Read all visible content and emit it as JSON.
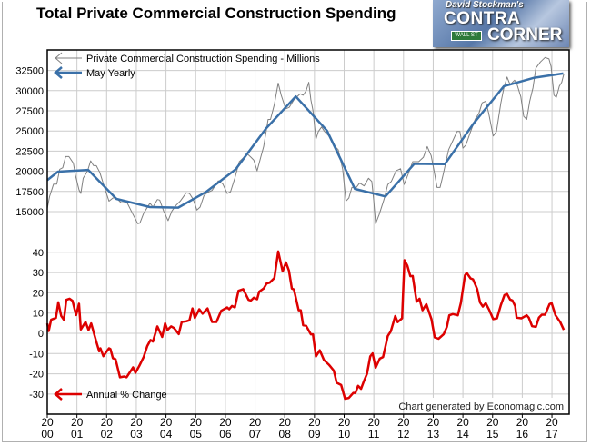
{
  "chart_data": [
    {
      "type": "line",
      "title": "Total Private Commercial Construction Spending",
      "ylim": [
        12500,
        35000
      ],
      "yticks": [
        15000,
        17500,
        20000,
        22500,
        25000,
        27500,
        30000,
        32500
      ],
      "grid": true,
      "legend_placement": "top-left",
      "series": [
        {
          "name": "Private Commercial Construction Spending  - Millions",
          "color": "#808080",
          "x": [
            2000,
            2000.08,
            2000.21,
            2000.32,
            2000.42,
            2000.52,
            2000.62,
            2000.73,
            2000.88,
            2000.95,
            2001.07,
            2001.13,
            2001.21,
            2001.36,
            2001.46,
            2001.56,
            2001.65,
            2001.77,
            2001.92,
            2002.08,
            2002.21,
            2002.33,
            2002.48,
            2002.69,
            2002.89,
            2003.05,
            2003.12,
            2003.25,
            2003.46,
            2003.56,
            2003.71,
            2003.79,
            2003.92,
            2004.07,
            2004.2,
            2004.33,
            2004.48,
            2004.68,
            2004.79,
            2004.92,
            2005.04,
            2005.15,
            2005.28,
            2005.4,
            2005.55,
            2005.76,
            2005.91,
            2006.06,
            2006.17,
            2006.32,
            2006.47,
            2006.61,
            2006.73,
            2006.86,
            2006.96,
            2007.07,
            2007.19,
            2007.29,
            2007.44,
            2007.52,
            2007.65,
            2007.78,
            2007.88,
            2008.03,
            2008.15,
            2008.31,
            2008.52,
            2008.62,
            2008.72,
            2008.81,
            2008.88,
            2008.95,
            2009.05,
            2009.13,
            2009.24,
            2009.34,
            2009.49,
            2009.65,
            2009.8,
            2009.95,
            2010.06,
            2010.16,
            2010.26,
            2010.41,
            2010.52,
            2010.67,
            2010.82,
            2010.93,
            2011,
            2011.06,
            2011.18,
            2011.34,
            2011.47,
            2011.59,
            2011.75,
            2011.9,
            2012.02,
            2012.16,
            2012.31,
            2012.51,
            2012.67,
            2012.8,
            2012.93,
            2013.03,
            2013.13,
            2013.23,
            2013.33,
            2013.52,
            2013.64,
            2013.8,
            2013.9,
            2014,
            2014.1,
            2014.26,
            2014.41,
            2014.54,
            2014.65,
            2014.77,
            2014.87,
            2015.02,
            2015.13,
            2015.28,
            2015.38,
            2015.49,
            2015.59,
            2015.74,
            2015.81,
            2015.95,
            2016.05,
            2016.15,
            2016.25,
            2016.36,
            2016.46,
            2016.61,
            2016.77,
            2016.9,
            2016.97,
            2017.07,
            2017.15,
            2017.25,
            2017.33,
            2017.4
          ],
          "values": [
            15380,
            16900,
            18400,
            18400,
            20250,
            20440,
            21820,
            21820,
            21000,
            19500,
            17700,
            17250,
            19130,
            20060,
            21300,
            20700,
            20700,
            19870,
            18070,
            16300,
            16690,
            16690,
            16120,
            16120,
            14630,
            13500,
            13580,
            14810,
            16050,
            15560,
            16500,
            16430,
            15080,
            13880,
            15080,
            15750,
            16310,
            17330,
            17250,
            16500,
            15190,
            15560,
            16990,
            17360,
            17620,
            18820,
            18450,
            17250,
            17440,
            19130,
            21190,
            21680,
            22200,
            21750,
            21370,
            20060,
            21750,
            23060,
            26430,
            26430,
            28300,
            30930,
            29430,
            27740,
            27930,
            28870,
            29610,
            29430,
            29990,
            31040,
            28870,
            27550,
            23990,
            24930,
            25490,
            24930,
            24370,
            23250,
            22680,
            20250,
            16310,
            16690,
            18000,
            18000,
            18560,
            18190,
            19130,
            18750,
            16310,
            13500,
            14630,
            16500,
            18370,
            18750,
            20060,
            20320,
            18370,
            19690,
            21190,
            21190,
            21750,
            23060,
            21940,
            20060,
            18000,
            18000,
            19500,
            22680,
            23620,
            24930,
            24930,
            22870,
            23250,
            24930,
            26430,
            27180,
            28490,
            28680,
            27180,
            24370,
            24930,
            28490,
            30360,
            31680,
            30740,
            31300,
            30930,
            29240,
            26800,
            26430,
            28680,
            30360,
            32800,
            33550,
            34110,
            33930,
            32990,
            29430,
            29170,
            30550,
            31040,
            32050
          ]
        },
        {
          "name": "May Yearly",
          "color": "#3a70a8",
          "x": [
            2000,
            2000.36,
            2001.38,
            2002.33,
            2003.46,
            2004.41,
            2005.35,
            2006.35,
            2007.37,
            2008.37,
            2009.42,
            2010.36,
            2011.39,
            2012.36,
            2013.39,
            2014.36,
            2015.38,
            2016.41,
            2017.38
          ],
          "values": [
            18900,
            19950,
            20170,
            16580,
            15560,
            15490,
            17440,
            20250,
            25300,
            29280,
            25040,
            17810,
            16880,
            20920,
            20880,
            25940,
            30550,
            31600,
            32130
          ]
        }
      ]
    },
    {
      "type": "line",
      "ylim": [
        -40,
        40
      ],
      "yticks": [
        -30,
        -20,
        -10,
        0,
        10,
        20,
        30,
        40
      ],
      "grid": true,
      "legend_placement": "bottom-left",
      "series": [
        {
          "name": "Annual % Change",
          "color": "#dd0000",
          "x": [
            2000,
            2000.05,
            2000.13,
            2000.29,
            2000.37,
            2000.47,
            2000.56,
            2000.64,
            2000.75,
            2000.85,
            2000.97,
            2001.07,
            2001.13,
            2001.29,
            2001.39,
            2001.48,
            2001.65,
            2001.75,
            2001.79,
            2001.89,
            2002.08,
            2002.13,
            2002.21,
            2002.3,
            2002.45,
            2002.59,
            2002.67,
            2002.89,
            2002.97,
            2003.1,
            2003.25,
            2003.37,
            2003.48,
            2003.56,
            2003.71,
            2003.87,
            2003.97,
            2004.05,
            2004.17,
            2004.27,
            2004.43,
            2004.53,
            2004.68,
            2004.79,
            2004.89,
            2004.97,
            2005.12,
            2005.23,
            2005.4,
            2005.55,
            2005.7,
            2005.86,
            2006.06,
            2006.13,
            2006.22,
            2006.32,
            2006.44,
            2006.6,
            2006.78,
            2006.86,
            2006.96,
            2007.07,
            2007.14,
            2007.29,
            2007.39,
            2007.49,
            2007.65,
            2007.78,
            2007.93,
            2008.04,
            2008.14,
            2008.24,
            2008.31,
            2008.47,
            2008.54,
            2008.62,
            2008.72,
            2008.88,
            2008.95,
            2009.05,
            2009.18,
            2009.32,
            2009.49,
            2009.65,
            2009.75,
            2009.9,
            2010.03,
            2010.16,
            2010.31,
            2010.38,
            2010.47,
            2010.57,
            2010.67,
            2010.77,
            2010.88,
            2010.96,
            2011.06,
            2011.2,
            2011.31,
            2011.47,
            2011.57,
            2011.72,
            2011.8,
            2011.95,
            2012.03,
            2012.13,
            2012.23,
            2012.31,
            2012.44,
            2012.54,
            2012.64,
            2012.77,
            2012.94,
            2013.05,
            2013.18,
            2013.35,
            2013.46,
            2013.54,
            2013.66,
            2013.83,
            2013.93,
            2014.07,
            2014.13,
            2014.26,
            2014.34,
            2014.48,
            2014.58,
            2014.67,
            2014.77,
            2014.89,
            2015.02,
            2015.15,
            2015.28,
            2015.4,
            2015.49,
            2015.59,
            2015.67,
            2015.76,
            2015.81,
            2015.97,
            2016.15,
            2016.22,
            2016.33,
            2016.46,
            2016.56,
            2016.66,
            2016.77,
            2016.92,
            2016.99,
            2017.12,
            2017.28,
            2017.4
          ],
          "values": [
            4.9,
            1.1,
            6.7,
            7.6,
            15.3,
            8.6,
            6.7,
            16.5,
            17.1,
            16,
            9,
            14.6,
            1.9,
            5.6,
            1.6,
            4.9,
            -4.1,
            -8.9,
            -7.4,
            -11.3,
            -7.4,
            -7.8,
            -12.3,
            -12.8,
            -21.7,
            -21.3,
            -21.7,
            -16.8,
            -19.5,
            -16.1,
            -11.6,
            -6.3,
            -3.3,
            -4.1,
            3.4,
            -1.8,
            4.9,
            1.6,
            3.4,
            2.6,
            -0.4,
            5.6,
            5.9,
            6.4,
            12.3,
            7.6,
            11.9,
            9.7,
            12.3,
            5.6,
            5.6,
            11.1,
            12.8,
            11.9,
            13.5,
            12.8,
            21,
            21.8,
            16.5,
            16.2,
            17.6,
            16.8,
            20.6,
            22.1,
            24.6,
            25,
            27.3,
            40.4,
            30.6,
            35,
            31,
            22.1,
            21.6,
            11.4,
            11.4,
            4,
            3.7,
            -0.5,
            -0.5,
            -11.4,
            -8.4,
            -13.2,
            -15.5,
            -18.4,
            -24.4,
            -25.5,
            -32.3,
            -31.9,
            -29.4,
            -29.4,
            -25.9,
            -27.4,
            -23.4,
            -20,
            -11.4,
            -9.9,
            -17,
            -12.5,
            -11.7,
            -1.3,
            1,
            8.5,
            5.5,
            7.4,
            36.1,
            33.4,
            28.2,
            28.3,
            15.6,
            17.1,
            11.4,
            14.4,
            7,
            -2,
            -2.7,
            -0.5,
            3.2,
            8.9,
            9.5,
            8.9,
            14.9,
            28.6,
            29.8,
            27.1,
            26.7,
            21.9,
            15.2,
            13.2,
            14.9,
            11.4,
            7,
            7.4,
            14,
            18.9,
            19.4,
            16.7,
            16.2,
            13.4,
            7.7,
            7.4,
            8.9,
            7.7,
            3.5,
            3.2,
            7.7,
            9.2,
            9.2,
            14.4,
            14.9,
            8.9,
            5.5,
            1.7
          ]
        }
      ]
    }
  ],
  "xaxis": {
    "ticks": [
      2000,
      2001,
      2002,
      2003,
      2004,
      2005,
      2006,
      2007,
      2008,
      2009,
      2010,
      2011,
      2012,
      2013,
      2014,
      2015,
      2016,
      2017
    ],
    "labels_top": [
      "20",
      "20",
      "20",
      "20",
      "20",
      "20",
      "20",
      "20",
      "20",
      "20",
      "20",
      "20",
      "20",
      "20",
      "20",
      "20",
      "20",
      "20"
    ],
    "labels_bottom": [
      "00",
      "01",
      "02",
      "03",
      "04",
      "05",
      "06",
      "07",
      "08",
      "09",
      "10",
      "11",
      "12",
      "13",
      "14",
      "15",
      "16",
      "17"
    ]
  },
  "upper_tick_labels": [
    "15000",
    "17500",
    "20000",
    "22500",
    "25000",
    "27500",
    "30000",
    "32500"
  ],
  "lower_tick_labels": [
    "-30",
    "-20",
    "-10",
    "0",
    "10",
    "20",
    "30",
    "40"
  ],
  "title": "Total Private Commercial Construction Spending",
  "credit": "Chart generated by Economagic.com",
  "logo": {
    "line1": "David Stockman's",
    "line2": "CONTRA",
    "line3": "CORNER",
    "sign": "WALL ST"
  }
}
